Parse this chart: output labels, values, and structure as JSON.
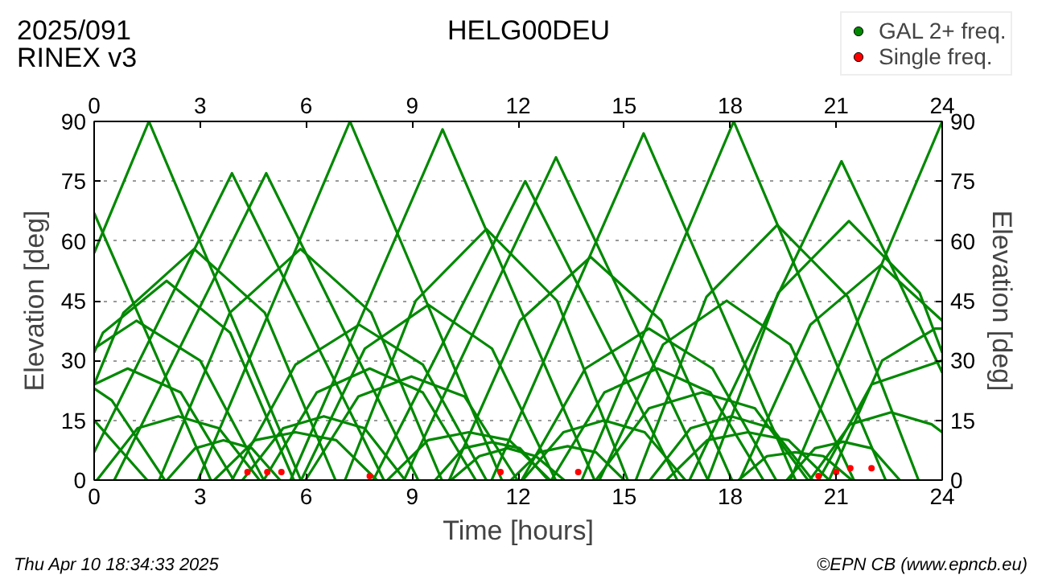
{
  "chart_data": {
    "type": "line",
    "title": "HELG00DEU",
    "subtitle": "2025/091",
    "xlabel": "Time [hours]",
    "ylabel": "Elevation [deg]",
    "y2label": "Elevation [deg]",
    "annotations": [
      "RINEX v3",
      "Thu Apr 10 18:34:33 2025",
      "©EPN CB (www.epncb.eu)"
    ],
    "xlim": [
      0,
      24
    ],
    "xticks": [
      0,
      3,
      6,
      9,
      12,
      15,
      18,
      21,
      24
    ],
    "x2lim": [
      0,
      24
    ],
    "x2ticks": [
      0,
      3,
      6,
      9,
      12,
      15,
      18,
      21,
      24
    ],
    "ylim": [
      0,
      90
    ],
    "yticks": [
      0,
      15,
      30,
      45,
      60,
      75,
      90
    ],
    "y2lim": [
      0,
      90
    ],
    "y2ticks": [
      0,
      15,
      30,
      45,
      60,
      75,
      90
    ],
    "grid": "y",
    "legend": "top right",
    "line_style": "solid",
    "series": [
      {
        "name": "GAL 2+ freq.",
        "color": "#008800",
        "x": [
          0,
          1.55,
          5.85
        ],
        "values": [
          57,
          90,
          0
        ]
      },
      {
        "color": "#008800",
        "x": [
          0,
          3.9,
          8.2
        ],
        "values": [
          7,
          77,
          0
        ]
      },
      {
        "color": "#008800",
        "x": [
          0.57,
          4.87,
          9.17
        ],
        "values": [
          0,
          77,
          0
        ]
      },
      {
        "color": "#008800",
        "x": [
          2.94,
          7.24,
          11.54
        ],
        "values": [
          0,
          90,
          0
        ]
      },
      {
        "color": "#008800",
        "x": [
          5.56,
          9.86,
          14.16
        ],
        "values": [
          0,
          88,
          0
        ]
      },
      {
        "color": "#008800",
        "x": [
          7.9,
          12.2,
          16.5
        ],
        "values": [
          0,
          75,
          0
        ]
      },
      {
        "color": "#008800",
        "x": [
          8.77,
          13.07,
          17.37
        ],
        "values": [
          0,
          81,
          0
        ]
      },
      {
        "color": "#008800",
        "x": [
          11.25,
          15.55,
          19.85
        ],
        "values": [
          0,
          87,
          0
        ]
      },
      {
        "color": "#008800",
        "x": [
          13.8,
          18.1,
          22.4
        ],
        "values": [
          0,
          90,
          0
        ]
      },
      {
        "color": "#008800",
        "x": [
          16.85,
          21.15,
          24
        ],
        "values": [
          0,
          80,
          27
        ]
      },
      {
        "color": "#008800",
        "x": [
          19.7,
          24
        ],
        "values": [
          0,
          90
        ]
      },
      {
        "color": "#008800",
        "x": [
          0,
          3.3
        ],
        "values": [
          67,
          0
        ]
      },
      {
        "color": "#008800",
        "x": [
          0,
          0.83,
          2.83,
          4.83,
          6.83
        ],
        "values": [
          24,
          42,
          58,
          42,
          0
        ]
      },
      {
        "color": "#008800",
        "x": [
          1.84,
          3.84,
          5.84,
          7.84,
          9.84
        ],
        "values": [
          0,
          42,
          58,
          42,
          0
        ]
      },
      {
        "color": "#008800",
        "x": [
          7.1,
          9.1,
          11.1,
          13.1,
          15.1
        ],
        "values": [
          0,
          45,
          63,
          45,
          0
        ]
      },
      {
        "color": "#008800",
        "x": [
          10.05,
          12.05,
          14.05,
          16.05,
          18.05
        ],
        "values": [
          0,
          40,
          56,
          40,
          0
        ]
      },
      {
        "color": "#008800",
        "x": [
          15.33,
          17.33,
          19.33,
          21.33,
          23.33
        ],
        "values": [
          0,
          46,
          64,
          46,
          0
        ]
      },
      {
        "color": "#008800",
        "x": [
          17.36,
          19.36,
          21.36,
          23.36,
          24
        ],
        "values": [
          0,
          47,
          65,
          47,
          32
        ]
      },
      {
        "color": "#008800",
        "x": [
          18.27,
          20.27,
          22.27,
          24
        ],
        "values": [
          0,
          39,
          54,
          40
        ]
      },
      {
        "color": "#008800",
        "x": [
          0,
          0.25,
          2.05,
          3.85,
          5.65
        ],
        "values": [
          32,
          37,
          50,
          37,
          0
        ]
      },
      {
        "color": "#008800",
        "x": [
          0,
          1.2,
          3.0,
          4.8
        ],
        "values": [
          33,
          40,
          30,
          0
        ]
      },
      {
        "color": "#008800",
        "x": [
          5.86,
          7.66,
          9.46,
          11.26,
          13.06
        ],
        "values": [
          0,
          33,
          44,
          33,
          0
        ]
      },
      {
        "color": "#008800",
        "x": [
          3.9,
          5.7,
          7.5,
          9.3,
          11.1
        ],
        "values": [
          0,
          29,
          39,
          29,
          0
        ]
      },
      {
        "color": "#008800",
        "x": [
          14.3,
          16.1,
          17.9,
          19.7,
          21.5
        ],
        "values": [
          0,
          34,
          45,
          34,
          0
        ]
      },
      {
        "color": "#008800",
        "x": [
          12.1,
          13.9,
          15.7,
          17.5,
          19.3
        ],
        "values": [
          0,
          28,
          38,
          28,
          0
        ]
      },
      {
        "color": "#008800",
        "x": [
          0,
          0.95,
          2.45,
          3.95
        ],
        "values": [
          24,
          28,
          22,
          0
        ]
      },
      {
        "color": "#008800",
        "x": [
          4.8,
          6.3,
          7.8,
          9.3,
          10.8
        ],
        "values": [
          0,
          22,
          28,
          22,
          0
        ]
      },
      {
        "color": "#008800",
        "x": [
          5.98,
          7.48,
          8.98,
          10.48,
          11.98
        ],
        "values": [
          0,
          21,
          26,
          21,
          0
        ]
      },
      {
        "color": "#008800",
        "x": [
          12.94,
          14.44,
          15.94,
          17.44,
          18.94
        ],
        "values": [
          0,
          22,
          28,
          22,
          0
        ]
      },
      {
        "color": "#008800",
        "x": [
          14.2,
          15.7,
          17.2,
          18.7,
          20.2
        ],
        "values": [
          0,
          18,
          22,
          18,
          0
        ]
      },
      {
        "color": "#008800",
        "x": [
          20.8,
          22.3,
          23.8,
          24
        ],
        "values": [
          0,
          30,
          38,
          38
        ]
      },
      {
        "color": "#008800",
        "x": [
          20.5,
          22,
          24
        ],
        "values": [
          0,
          24,
          30
        ]
      },
      {
        "color": "#008800",
        "x": [
          0.08,
          1.23,
          2.38,
          3.53,
          4.68
        ],
        "values": [
          0,
          13,
          16,
          13,
          0
        ]
      },
      {
        "color": "#008800",
        "x": [
          4.2,
          5.35,
          6.5,
          7.65,
          8.8
        ],
        "values": [
          0,
          13,
          16,
          13,
          0
        ]
      },
      {
        "color": "#008800",
        "x": [
          3.4,
          4.55,
          5.7,
          6.85,
          8.0
        ],
        "values": [
          0,
          10,
          12,
          10,
          0
        ]
      },
      {
        "color": "#008800",
        "x": [
          8.3,
          9.45,
          10.6,
          11.75,
          12.9
        ],
        "values": [
          0,
          10,
          12,
          10,
          0
        ]
      },
      {
        "color": "#008800",
        "x": [
          12.13,
          13.28,
          14.43,
          15.58,
          16.73
        ],
        "values": [
          0,
          12,
          15,
          12,
          0
        ]
      },
      {
        "color": "#008800",
        "x": [
          15.73,
          16.88,
          18.03,
          19.18,
          20.33
        ],
        "values": [
          0,
          13,
          16,
          13,
          0
        ]
      },
      {
        "color": "#008800",
        "x": [
          20.25,
          21.4,
          22.55,
          23.7,
          24
        ],
        "values": [
          0,
          14,
          17,
          14,
          12
        ]
      },
      {
        "color": "#008800",
        "x": [
          16.2,
          17.35,
          18.5,
          19.65,
          20.8
        ],
        "values": [
          0,
          10,
          12,
          10,
          0
        ]
      },
      {
        "color": "#008800",
        "x": [
          2.06,
          2.86,
          3.66,
          4.46,
          5.26
        ],
        "values": [
          0,
          8,
          10,
          8,
          0
        ]
      },
      {
        "color": "#008800",
        "x": [
          9.65,
          10.45,
          11.25,
          12.05,
          12.85
        ],
        "values": [
          0,
          8,
          9.5,
          8,
          0
        ]
      },
      {
        "color": "#008800",
        "x": [
          10.1,
          10.9,
          11.7,
          12.5,
          13.3
        ],
        "values": [
          0,
          6,
          8,
          6,
          0
        ]
      },
      {
        "color": "#008800",
        "x": [
          11.8,
          12.6,
          13.4,
          14.2,
          15.0
        ],
        "values": [
          0,
          7,
          8.5,
          7,
          0
        ]
      },
      {
        "color": "#008800",
        "x": [
          18.24,
          19.04,
          19.84,
          20.64,
          21.44
        ],
        "values": [
          0,
          6,
          7,
          6,
          0
        ]
      },
      {
        "color": "#008800",
        "x": [
          19.6,
          20.4,
          21.2,
          22.0,
          22.8
        ],
        "values": [
          0,
          8,
          9.6,
          8,
          0
        ]
      },
      {
        "color": "#008800",
        "x": [
          0,
          0.5,
          2.0
        ],
        "values": [
          23,
          20,
          0
        ]
      },
      {
        "color": "#008800",
        "x": [
          0,
          1.5
        ],
        "values": [
          15,
          0
        ]
      },
      {
        "name": "Single freq.",
        "color": "#ff0000",
        "type": "scatter",
        "x": [
          4.34,
          4.9,
          5.3,
          7.8,
          11.5,
          13.7,
          20.5,
          21.0,
          21.4,
          22.0
        ],
        "values": [
          2,
          2,
          2,
          1,
          2,
          2,
          1,
          2,
          3,
          3
        ]
      }
    ]
  }
}
